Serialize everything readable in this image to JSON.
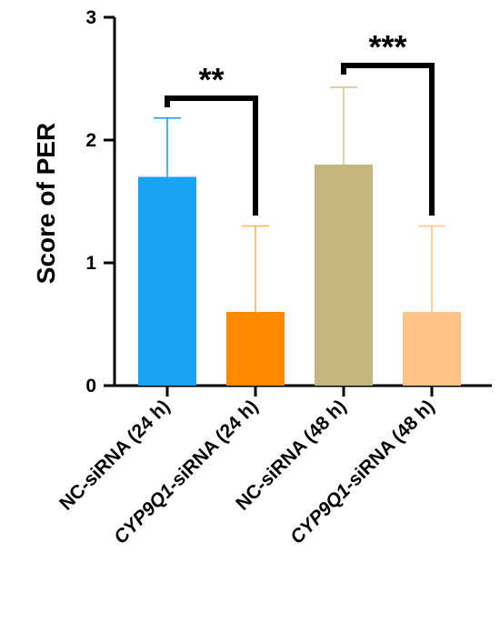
{
  "chart_data": {
    "type": "bar",
    "ylabel": "Score of PER",
    "ylim": [
      0,
      3
    ],
    "yticks": [
      "0",
      "1",
      "2",
      "3"
    ],
    "categories": [
      {
        "label": "NC-siRNA (24 h)",
        "italic_prefix": "",
        "rest": "NC-siRNA (24 h)"
      },
      {
        "label": "CYP9Q1-siRNA (24 h)",
        "italic_prefix": "CYP9Q1",
        "rest": "-siRNA (24 h)"
      },
      {
        "label": "NC-siRNA (48 h)",
        "italic_prefix": "",
        "rest": "NC-siRNA (48 h)"
      },
      {
        "label": "CYP9Q1-siRNA (48 h)",
        "italic_prefix": "CYP9Q1",
        "rest": "-siRNA (48 h)"
      }
    ],
    "values": [
      1.7,
      0.6,
      1.8,
      0.6
    ],
    "errors": [
      0.48,
      0.7,
      0.63,
      0.7
    ],
    "colors": [
      "#1aa3f2",
      "#ff8a00",
      "#c4b67d",
      "#ffc485"
    ],
    "error_colors": [
      "#1aa3f2",
      "#ffb060",
      "#d2c699",
      "#ffc485"
    ],
    "significance": [
      {
        "from": 0,
        "to": 1,
        "label": "**"
      },
      {
        "from": 2,
        "to": 3,
        "label": "***"
      }
    ],
    "grid": false,
    "legend": "none"
  }
}
